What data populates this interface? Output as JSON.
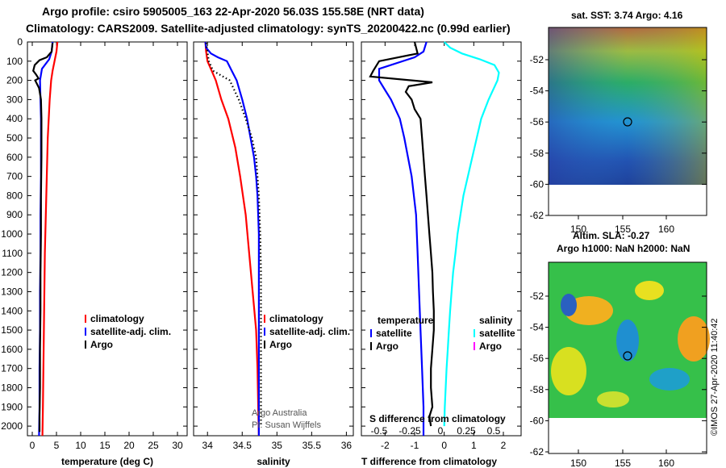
{
  "header": {
    "title_line1": "Argo profile: csiro 5905005_163 22-Apr-2020 56.03S 155.58E (NRT data)",
    "title_line2": "Climatology: CARS2009. Satellite-adjusted climatology: synTS_20200422.nc (0.99d earlier)"
  },
  "map_sst": {
    "title": "sat. SST: 3.74 Argo: 4.16"
  },
  "map_sla": {
    "title1": "Altim. SLA: -0.27",
    "title2": "Argo h1000: NaN h2000: NaN"
  },
  "map_axes": {
    "yticks": [
      "-52",
      "-54",
      "-56",
      "-58",
      "-60",
      "-62"
    ],
    "xticks": [
      "150",
      "155",
      "160"
    ]
  },
  "credit": {
    "imos": "©IMOS 27-Apr-2020 11:40:42"
  },
  "chart_data": [
    {
      "type": "line",
      "title": "",
      "xlabel": "temperature (deg C)",
      "ylabel": "",
      "xlim": [
        -1,
        32
      ],
      "ylim": [
        2050,
        0
      ],
      "xticks": [
        0,
        5,
        10,
        15,
        20,
        25,
        30
      ],
      "yticks": [
        0,
        100,
        200,
        300,
        400,
        500,
        600,
        700,
        800,
        900,
        1000,
        1100,
        1200,
        1300,
        1400,
        1500,
        1600,
        1700,
        1800,
        1900,
        2000
      ],
      "legend": [
        "climatology",
        "satellite-adj. clim.",
        "Argo"
      ],
      "series": [
        {
          "name": "climatology",
          "color": "#ff0000",
          "points": [
            [
              5.2,
              0
            ],
            [
              5.0,
              50
            ],
            [
              4.6,
              100
            ],
            [
              4.2,
              150
            ],
            [
              3.9,
              200
            ],
            [
              3.6,
              300
            ],
            [
              3.4,
              400
            ],
            [
              3.2,
              500
            ],
            [
              3.0,
              700
            ],
            [
              2.8,
              900
            ],
            [
              2.6,
              1100
            ],
            [
              2.5,
              1300
            ],
            [
              2.4,
              1500
            ],
            [
              2.3,
              1700
            ],
            [
              2.2,
              1900
            ],
            [
              2.1,
              2050
            ]
          ]
        },
        {
          "name": "satellite-adj. clim.",
          "color": "#0000ff",
          "points": [
            [
              4.2,
              0
            ],
            [
              4.0,
              50
            ],
            [
              3.5,
              90
            ],
            [
              2.0,
              140
            ],
            [
              1.6,
              200
            ],
            [
              1.7,
              300
            ],
            [
              1.8,
              400
            ],
            [
              1.8,
              500
            ],
            [
              1.8,
              700
            ],
            [
              1.7,
              900
            ],
            [
              1.7,
              1100
            ],
            [
              1.6,
              1300
            ],
            [
              1.6,
              1500
            ],
            [
              1.5,
              1700
            ],
            [
              1.5,
              1900
            ],
            [
              1.4,
              2050
            ]
          ]
        },
        {
          "name": "Argo",
          "color": "#000000",
          "points": [
            [
              4.2,
              5
            ],
            [
              4.0,
              50
            ],
            [
              3.0,
              80
            ],
            [
              1.5,
              95
            ],
            [
              0.5,
              120
            ],
            [
              0.2,
              150
            ],
            [
              0.8,
              170
            ],
            [
              1.3,
              190
            ],
            [
              0.6,
              200
            ],
            [
              1.4,
              240
            ],
            [
              1.8,
              300
            ],
            [
              1.9,
              400
            ],
            [
              1.9,
              600
            ],
            [
              1.8,
              800
            ],
            [
              1.8,
              1000
            ],
            [
              1.7,
              1200
            ],
            [
              1.7,
              1400
            ],
            [
              1.6,
              1600
            ],
            [
              1.6,
              1800
            ],
            [
              1.5,
              1950
            ],
            [
              1.5,
              2030
            ]
          ]
        }
      ]
    },
    {
      "type": "line",
      "title": "",
      "xlabel": "salinity",
      "ylabel": "",
      "xlim": [
        33.8,
        36.1
      ],
      "ylim": [
        2050,
        0
      ],
      "xticks": [
        34,
        34.5,
        35,
        35.5,
        36
      ],
      "legend": [
        "climatology",
        "satellite-adj. clim.",
        "Argo"
      ],
      "credits": [
        "Argo Australia",
        "PI: Susan Wijffels"
      ],
      "series": [
        {
          "name": "climatology",
          "color": "#ff0000",
          "points": [
            [
              33.97,
              0
            ],
            [
              33.98,
              50
            ],
            [
              34.0,
              100
            ],
            [
              34.06,
              150
            ],
            [
              34.12,
              200
            ],
            [
              34.2,
              300
            ],
            [
              34.3,
              400
            ],
            [
              34.4,
              550
            ],
            [
              34.47,
              700
            ],
            [
              34.55,
              900
            ],
            [
              34.6,
              1100
            ],
            [
              34.65,
              1300
            ],
            [
              34.7,
              1500
            ],
            [
              34.72,
              1700
            ],
            [
              34.73,
              1900
            ],
            [
              34.74,
              2050
            ]
          ]
        },
        {
          "name": "satellite-adj. clim.",
          "color": "#0000ff",
          "points": [
            [
              33.97,
              0
            ],
            [
              33.98,
              30
            ],
            [
              34.05,
              60
            ],
            [
              34.15,
              80
            ],
            [
              34.28,
              100
            ],
            [
              34.35,
              150
            ],
            [
              34.42,
              200
            ],
            [
              34.5,
              300
            ],
            [
              34.57,
              400
            ],
            [
              34.62,
              500
            ],
            [
              34.67,
              600
            ],
            [
              34.7,
              700
            ],
            [
              34.72,
              800
            ],
            [
              34.74,
              1000
            ],
            [
              34.74,
              1200
            ],
            [
              34.74,
              1400
            ],
            [
              34.74,
              1600
            ],
            [
              34.74,
              1800
            ],
            [
              34.74,
              2050
            ]
          ]
        },
        {
          "name": "Argo",
          "color": "#000000",
          "points": [
            [
              33.98,
              5
            ],
            [
              34.02,
              100
            ],
            [
              34.08,
              150
            ],
            [
              34.2,
              175
            ],
            [
              34.32,
              200
            ],
            [
              34.45,
              300
            ],
            [
              34.55,
              400
            ],
            [
              34.64,
              500
            ],
            [
              34.7,
              600
            ],
            [
              34.74,
              800
            ],
            [
              34.76,
              1000
            ],
            [
              34.77,
              1200
            ],
            [
              34.77,
              1400
            ],
            [
              34.77,
              1600
            ],
            [
              34.77,
              1800
            ],
            [
              34.77,
              2000
            ]
          ]
        }
      ]
    },
    {
      "type": "line",
      "title": "",
      "xlabel": "T difference from climatology",
      "ylabel": "",
      "xlim": [
        -2.8,
        2.6
      ],
      "ylim": [
        2050,
        0
      ],
      "xticks": [
        -2,
        -1,
        0,
        1,
        2
      ],
      "top_axis": {
        "label": "S difference from climatology",
        "ticks": [
          "-0.5",
          "-0.25",
          "0",
          "0.25",
          "0.5"
        ]
      },
      "legend": [
        "temperature",
        "satellite",
        "Argo",
        "salinity",
        "satellite",
        "Argo"
      ],
      "series": [
        {
          "name": "temperature satellite",
          "color": "#0000ff",
          "points": [
            [
              -0.6,
              0
            ],
            [
              -0.7,
              50
            ],
            [
              -1.0,
              80
            ],
            [
              -2.2,
              140
            ],
            [
              -2.2,
              200
            ],
            [
              -2.0,
              250
            ],
            [
              -1.8,
              300
            ],
            [
              -1.5,
              400
            ],
            [
              -1.35,
              500
            ],
            [
              -1.1,
              700
            ],
            [
              -0.95,
              900
            ],
            [
              -0.9,
              1100
            ],
            [
              -0.85,
              1300
            ],
            [
              -0.8,
              1500
            ],
            [
              -0.75,
              1700
            ],
            [
              -0.7,
              1900
            ],
            [
              -0.7,
              2050
            ]
          ]
        },
        {
          "name": "temperature Argo",
          "color": "#000000",
          "points": [
            [
              -1.0,
              0
            ],
            [
              -0.9,
              60
            ],
            [
              -2.2,
              100
            ],
            [
              -2.4,
              150
            ],
            [
              -2.5,
              180
            ],
            [
              -0.4,
              210
            ],
            [
              -1.2,
              230
            ],
            [
              -1.3,
              260
            ],
            [
              -1.1,
              300
            ],
            [
              -1.0,
              350
            ],
            [
              -0.8,
              400
            ],
            [
              -0.75,
              500
            ],
            [
              -0.7,
              600
            ],
            [
              -0.65,
              700
            ],
            [
              -0.6,
              800
            ],
            [
              -0.55,
              900
            ],
            [
              -0.5,
              1000
            ],
            [
              -0.45,
              1100
            ],
            [
              -0.4,
              1200
            ],
            [
              -0.38,
              1300
            ],
            [
              -0.35,
              1400
            ],
            [
              -0.35,
              1500
            ],
            [
              -0.4,
              1600
            ],
            [
              -0.45,
              1700
            ],
            [
              -0.45,
              1800
            ],
            [
              -0.4,
              1900
            ],
            [
              -0.5,
              1950
            ],
            [
              -0.45,
              2000
            ]
          ]
        },
        {
          "name": "salinity satellite",
          "color": "#00ffff",
          "points": [
            [
              0.0,
              0
            ],
            [
              0.2,
              30
            ],
            [
              0.6,
              60
            ],
            [
              1.2,
              90
            ],
            [
              1.7,
              120
            ],
            [
              1.85,
              160
            ],
            [
              1.8,
              200
            ],
            [
              1.5,
              300
            ],
            [
              1.25,
              400
            ],
            [
              1.1,
              500
            ],
            [
              0.95,
              600
            ],
            [
              0.8,
              700
            ],
            [
              0.65,
              800
            ],
            [
              0.55,
              900
            ],
            [
              0.45,
              1000
            ],
            [
              0.38,
              1100
            ],
            [
              0.3,
              1200
            ],
            [
              0.25,
              1300
            ],
            [
              0.2,
              1400
            ],
            [
              0.16,
              1500
            ],
            [
              0.12,
              1600
            ],
            [
              0.08,
              1700
            ],
            [
              0.05,
              1800
            ],
            [
              0.02,
              1900
            ],
            [
              0.0,
              2000
            ]
          ]
        }
      ]
    }
  ]
}
